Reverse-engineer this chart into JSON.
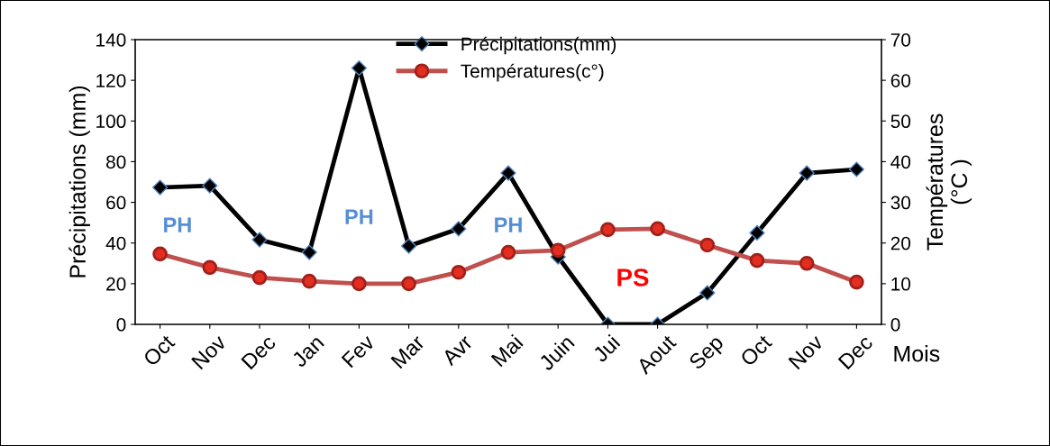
{
  "chart_data": {
    "type": "line",
    "xlabel": "Mois",
    "ylabel": "Précipitations (mm)",
    "y2label": "Températures\n(°C )",
    "categories": [
      "Oct",
      "Nov",
      "Dec",
      "Jan",
      "Fev",
      "Mar",
      "Avr",
      "Mai",
      "Juin",
      "Jui",
      "Aout",
      "Sep",
      "Oct",
      "Nov",
      "Dec"
    ],
    "series": [
      {
        "name": "Précipitations(mm)",
        "color": "#000000",
        "marker": "diamond",
        "values": [
          67.3,
          68.2,
          41.6,
          35.4,
          126,
          38.5,
          47,
          74.4,
          33.2,
          0,
          0,
          15.5,
          45,
          74.4,
          76.2
        ]
      },
      {
        "name": "Températures(c°)",
        "color": "#c0504d",
        "marker": "circle",
        "axis": "y2",
        "values": [
          17.3,
          14,
          11.5,
          10.6,
          10,
          10,
          12.8,
          17.7,
          18.2,
          23.3,
          23.5,
          19.5,
          15.7,
          15,
          10.4
        ]
      }
    ],
    "ylim": [
      0,
      140
    ],
    "yticks": [
      0,
      20,
      40,
      60,
      80,
      100,
      120,
      140
    ],
    "y2lim": [
      0,
      70
    ],
    "y2ticks": [
      0,
      10,
      20,
      30,
      40,
      50,
      60,
      70
    ],
    "annotations": [
      "PH",
      "PH",
      "PH",
      "PS"
    ],
    "legend": "top",
    "grid": false,
    "line_style": "solid"
  }
}
